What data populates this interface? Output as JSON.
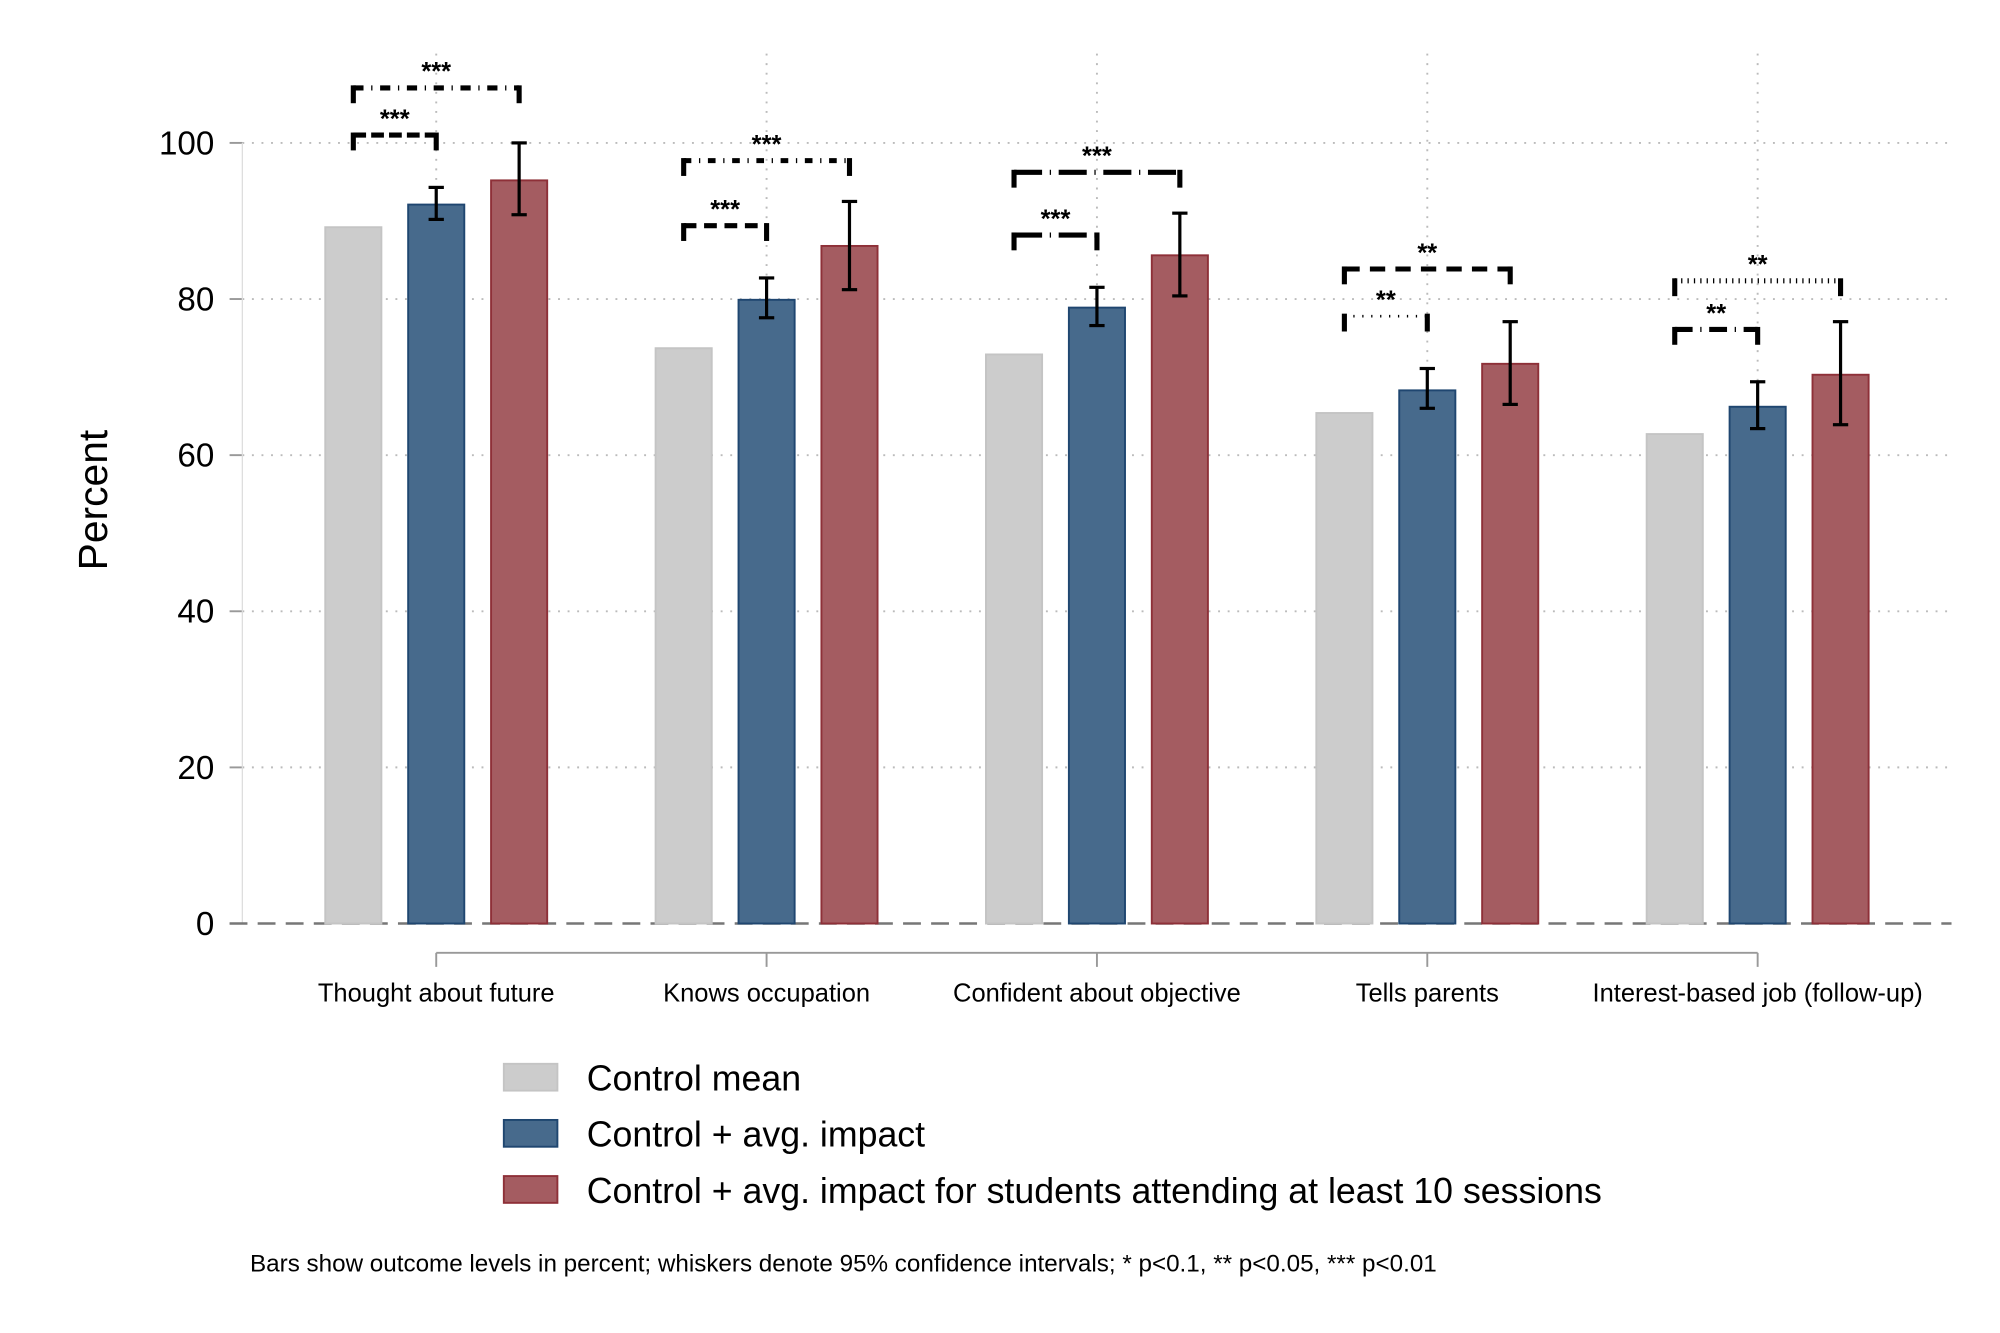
{
  "chart_data": {
    "type": "bar",
    "ylabel": "Percent",
    "ylim": [
      0,
      100
    ],
    "yticks": [
      0,
      20,
      40,
      60,
      80,
      100
    ],
    "grid": true,
    "legend_placement": "bottom",
    "categories": [
      "Thought about future",
      "Knows occupation",
      "Confident about objective",
      "Tells parents",
      "Interest-based job (follow-up)"
    ],
    "series": [
      {
        "name": "Control mean",
        "color": "#cccccc",
        "values": [
          89.2,
          73.7,
          72.9,
          65.4,
          62.7
        ]
      },
      {
        "name": "Control + avg. impact",
        "color": "#476a8c",
        "values": [
          92.1,
          79.9,
          78.9,
          68.3,
          66.2
        ],
        "ci_low": [
          90.2,
          77.6,
          76.6,
          66.0,
          63.4
        ],
        "ci_high": [
          94.3,
          82.7,
          81.5,
          71.1,
          69.4
        ]
      },
      {
        "name": "Control + avg. impact for students attending at least 10 sessions",
        "color": "#a45c61",
        "values": [
          95.2,
          86.8,
          85.6,
          71.7,
          70.3
        ],
        "ci_low": [
          90.8,
          81.2,
          80.4,
          66.5,
          63.9
        ],
        "ci_high": [
          100.0,
          92.5,
          91.0,
          77.1,
          77.1
        ]
      }
    ],
    "significance": [
      {
        "category": "Thought about future",
        "inner": "***",
        "outer": "***"
      },
      {
        "category": "Knows occupation",
        "inner": "***",
        "outer": "***"
      },
      {
        "category": "Confident about objective",
        "inner": "***",
        "outer": "***"
      },
      {
        "category": "Tells parents",
        "inner": "**",
        "outer": "**"
      },
      {
        "category": "Interest-based job (follow-up)",
        "inner": "**",
        "outer": "**"
      }
    ],
    "note": "Bars show outcome levels in percent; whiskers denote 95% confidence intervals; * p<0.1, ** p<0.05, *** p<0.01"
  }
}
